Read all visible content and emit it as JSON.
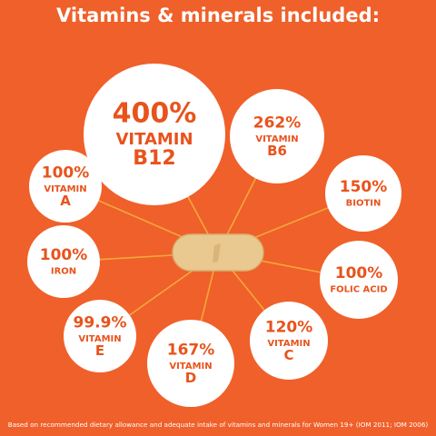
{
  "header": {
    "title": "Vitamins & minerals included:"
  },
  "nodes": [
    {
      "percent": "400%",
      "lines": [
        "VITAMIN",
        "B12"
      ]
    },
    {
      "percent": "262%",
      "lines": [
        "VITAMIN",
        "B6"
      ]
    },
    {
      "percent": "100%",
      "lines": [
        "VITAMIN",
        "A"
      ]
    },
    {
      "percent": "150%",
      "lines": [
        "BIOTIN"
      ]
    },
    {
      "percent": "100%",
      "lines": [
        "IRON"
      ]
    },
    {
      "percent": "100%",
      "lines": [
        "FOLIC ACID"
      ]
    },
    {
      "percent": "99.9%",
      "lines": [
        "VITAMIN",
        "E"
      ]
    },
    {
      "percent": "167%",
      "lines": [
        "VITAMIN",
        "D"
      ]
    },
    {
      "percent": "120%",
      "lines": [
        "VITAMIN",
        "C"
      ]
    }
  ],
  "footer": {
    "note": "Based on recommended dietary allowance and adequate intake of vitamins and minerals for Women 19+ (IOM 2011; IOM 2006)"
  }
}
